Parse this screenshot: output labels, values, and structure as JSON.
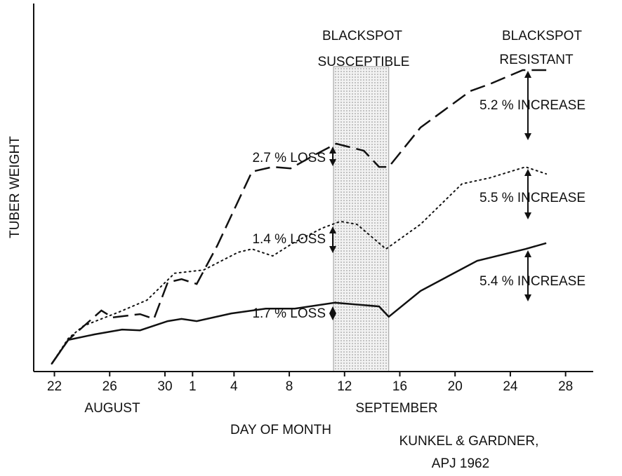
{
  "chart_data": {
    "type": "line",
    "ylabel": "TUBER WEIGHT",
    "xlabel": "DAY OF MONTH",
    "month_labels": [
      "AUGUST",
      "SEPTEMBER"
    ],
    "credit": [
      "KUNKEL & GARDNER,",
      "APJ  1962"
    ],
    "region_labels": [
      [
        "BLACKSPOT",
        "SUSCEPTIBLE"
      ],
      [
        "BLACKSPOT",
        "RESISTANT"
      ]
    ],
    "annotations": [
      "2.7 % LOSS",
      "1.4 % LOSS",
      "1.7 % LOSS",
      "5.2 % INCREASE",
      "5.5 % INCREASE",
      "5.4 % INCREASE"
    ],
    "shaded_region": [
      20.2,
      24.2
    ],
    "xlim": [
      -1.5,
      39
    ],
    "ylim": [
      0,
      100
    ],
    "xticks": [
      {
        "value": 0,
        "label": "22"
      },
      {
        "value": 4,
        "label": "26"
      },
      {
        "value": 8,
        "label": "30"
      },
      {
        "value": 10,
        "label": "1"
      },
      {
        "value": 13,
        "label": "4"
      },
      {
        "value": 17,
        "label": "8"
      },
      {
        "value": 21,
        "label": "12"
      },
      {
        "value": 25,
        "label": "16"
      },
      {
        "value": 29,
        "label": "20"
      },
      {
        "value": 33,
        "label": "24"
      },
      {
        "value": 37,
        "label": "28"
      }
    ],
    "series": [
      {
        "style": "dashed",
        "color": "#111111",
        "x": [
          -0.2,
          1.0,
          3.4,
          4.2,
          6.2,
          7.2,
          8.2,
          9.2,
          10.3,
          11.8,
          14.3,
          15.8,
          17.1,
          18.9,
          20.4,
          22.4,
          23.5,
          24.2,
          26.5,
          30.1,
          31.5,
          33.9,
          35.6
        ],
        "values": [
          2.1,
          8.6,
          16.6,
          14.7,
          15.6,
          14.3,
          24.2,
          25.1,
          23.8,
          34.3,
          54.3,
          55.6,
          55.2,
          59.0,
          61.9,
          60.0,
          55.6,
          55.6,
          66.3,
          76.2,
          78.1,
          81.9,
          81.9
        ]
      },
      {
        "style": "dotted",
        "color": "#111111",
        "x": [
          -0.2,
          1.0,
          2.1,
          4.7,
          6.7,
          8.7,
          10.8,
          13.3,
          14.3,
          15.8,
          17.4,
          19.4,
          20.7,
          21.9,
          24.0,
          26.5,
          29.5,
          31.5,
          34.1,
          35.6
        ],
        "values": [
          2.1,
          9.0,
          12.4,
          16.2,
          19.4,
          26.7,
          27.6,
          32.4,
          33.3,
          31.4,
          35.2,
          39.0,
          40.8,
          40.0,
          33.3,
          40.0,
          51.0,
          52.6,
          55.6,
          53.7
        ]
      },
      {
        "style": "solid",
        "color": "#111111",
        "x": [
          -0.2,
          1.0,
          2.9,
          4.9,
          6.2,
          8.2,
          9.2,
          10.3,
          12.8,
          15.3,
          17.4,
          20.3,
          23.5,
          24.2,
          26.5,
          30.6,
          34.1,
          35.6
        ],
        "values": [
          2.1,
          8.6,
          10.1,
          11.4,
          11.2,
          13.7,
          14.3,
          13.7,
          15.8,
          17.1,
          17.1,
          18.7,
          17.7,
          14.9,
          21.9,
          30.1,
          33.3,
          34.9
        ]
      }
    ]
  }
}
